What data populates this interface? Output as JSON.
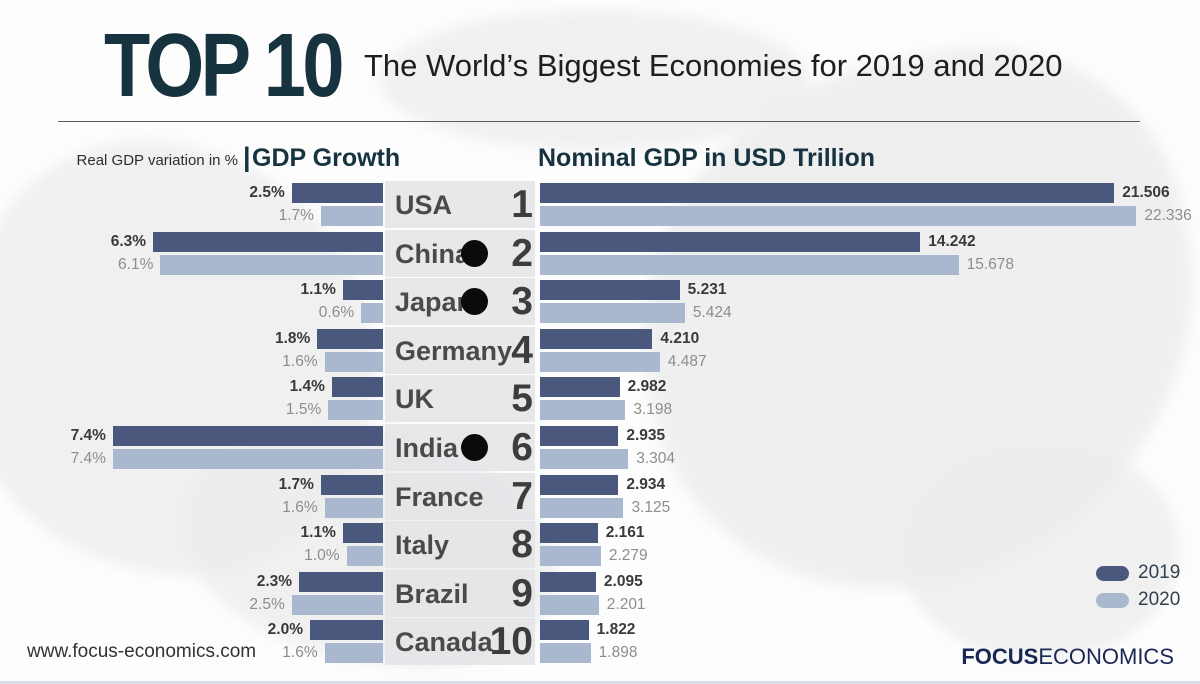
{
  "header": {
    "title": "TOP 10",
    "subtitle": "The World’s Biggest Economies for 2019 and 2020"
  },
  "columns": {
    "left_note": "Real GDP variation in %",
    "separator": "|",
    "left_title": "GDP Growth",
    "right_title": "Nominal GDP in USD Trillion"
  },
  "colors": {
    "accent_teal": "#16333f",
    "bar_2019": "#49587c",
    "bar_2020": "#a9b8ce",
    "band_gray": "#e8e8ea",
    "brand_navy": "#1a2653"
  },
  "legend": {
    "items": [
      {
        "label": "2019",
        "color": "#49587c"
      },
      {
        "label": "2020",
        "color": "#a9b8ce"
      }
    ]
  },
  "footer": {
    "website": "www.focus-economics.com",
    "brand_bold": "FOCUS",
    "brand_regular": "ECONOMICS"
  },
  "rows": [
    {
      "rank": "1",
      "country": "USA",
      "marker": false,
      "growth_2019": "2.5%",
      "growth_2020": "1.7%",
      "gdp_2019": "21.506",
      "gdp_2020": "22.336"
    },
    {
      "rank": "2",
      "country": "China",
      "marker": true,
      "growth_2019": "6.3%",
      "growth_2020": "6.1%",
      "gdp_2019": "14.242",
      "gdp_2020": "15.678"
    },
    {
      "rank": "3",
      "country": "Japan",
      "marker": true,
      "growth_2019": "1.1%",
      "growth_2020": "0.6%",
      "gdp_2019": "5.231",
      "gdp_2020": "5.424"
    },
    {
      "rank": "4",
      "country": "Germany",
      "marker": false,
      "growth_2019": "1.8%",
      "growth_2020": "1.6%",
      "gdp_2019": "4.210",
      "gdp_2020": "4.487"
    },
    {
      "rank": "5",
      "country": "UK",
      "marker": false,
      "growth_2019": "1.4%",
      "growth_2020": "1.5%",
      "gdp_2019": "2.982",
      "gdp_2020": "3.198"
    },
    {
      "rank": "6",
      "country": "India",
      "marker": true,
      "growth_2019": "7.4%",
      "growth_2020": "7.4%",
      "gdp_2019": "2.935",
      "gdp_2020": "3.304"
    },
    {
      "rank": "7",
      "country": "France",
      "marker": false,
      "growth_2019": "1.7%",
      "growth_2020": "1.6%",
      "gdp_2019": "2.934",
      "gdp_2020": "3.125"
    },
    {
      "rank": "8",
      "country": "Italy",
      "marker": false,
      "growth_2019": "1.1%",
      "growth_2020": "1.0%",
      "gdp_2019": "2.161",
      "gdp_2020": "2.279"
    },
    {
      "rank": "9",
      "country": "Brazil",
      "marker": false,
      "growth_2019": "2.3%",
      "growth_2020": "2.5%",
      "gdp_2019": "2.095",
      "gdp_2020": "2.201"
    },
    {
      "rank": "10",
      "country": "Canada",
      "marker": false,
      "growth_2019": "2.0%",
      "growth_2020": "1.6%",
      "gdp_2019": "1.822",
      "gdp_2020": "1.898"
    }
  ],
  "chart_data": {
    "type": "bar",
    "title": "TOP 10 — The World’s Biggest Economies for 2019 and 2020",
    "categories": [
      "USA",
      "China",
      "Japan",
      "Germany",
      "UK",
      "India",
      "France",
      "Italy",
      "Brazil",
      "Canada"
    ],
    "ranks": [
      1,
      2,
      3,
      4,
      5,
      6,
      7,
      8,
      9,
      10
    ],
    "charts": [
      {
        "name": "GDP Growth",
        "unit": "Real GDP variation in %",
        "orientation": "horizontal-right-aligned",
        "series": [
          {
            "name": "2019",
            "values": [
              2.5,
              6.3,
              1.1,
              1.8,
              1.4,
              7.4,
              1.7,
              1.1,
              2.3,
              2.0
            ]
          },
          {
            "name": "2020",
            "values": [
              1.7,
              6.1,
              0.6,
              1.6,
              1.5,
              7.4,
              1.6,
              1.0,
              2.5,
              1.6
            ]
          }
        ]
      },
      {
        "name": "Nominal GDP in USD Trillion",
        "unit": "USD Trillion",
        "orientation": "horizontal-left-aligned",
        "series": [
          {
            "name": "2019",
            "values": [
              21.506,
              14.242,
              5.231,
              4.21,
              2.982,
              2.935,
              2.934,
              2.161,
              2.095,
              1.822
            ]
          },
          {
            "name": "2020",
            "values": [
              22.336,
              15.678,
              5.424,
              4.487,
              3.198,
              3.304,
              3.125,
              2.279,
              2.201,
              1.898
            ]
          }
        ]
      }
    ],
    "legend_position": "bottom-right",
    "grid": false
  }
}
